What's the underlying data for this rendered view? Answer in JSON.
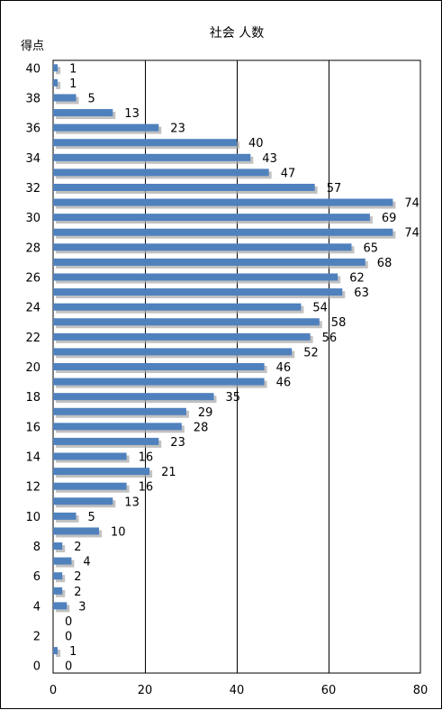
{
  "chart_data": {
    "type": "bar",
    "orientation": "horizontal",
    "title": "社会 人数",
    "ylabel": "得点",
    "xlabel": "",
    "categories": [
      40,
      39,
      38,
      37,
      36,
      35,
      34,
      33,
      32,
      31,
      30,
      29,
      28,
      27,
      26,
      25,
      24,
      23,
      22,
      21,
      20,
      19,
      18,
      17,
      16,
      15,
      14,
      13,
      12,
      11,
      10,
      9,
      8,
      7,
      6,
      5,
      4,
      3,
      2,
      1,
      0
    ],
    "y_tick_labels": [
      "40",
      "38",
      "36",
      "34",
      "32",
      "30",
      "28",
      "26",
      "24",
      "22",
      "20",
      "18",
      "16",
      "14",
      "12",
      "10",
      "8",
      "6",
      "4",
      "2",
      "0"
    ],
    "values": [
      1,
      1,
      5,
      13,
      23,
      40,
      43,
      47,
      57,
      74,
      69,
      74,
      65,
      68,
      62,
      63,
      54,
      58,
      56,
      52,
      46,
      46,
      35,
      29,
      28,
      23,
      16,
      21,
      16,
      13,
      5,
      10,
      2,
      4,
      2,
      2,
      3,
      0,
      0,
      1,
      0
    ],
    "xlim": [
      0,
      80
    ],
    "x_ticks": [
      0,
      20,
      40,
      60,
      80
    ],
    "grid": "vertical",
    "legend": "none",
    "bar_color": "#4f81bd",
    "bar_shadow_color": "#a6a6a6",
    "grid_color": "#000000"
  }
}
